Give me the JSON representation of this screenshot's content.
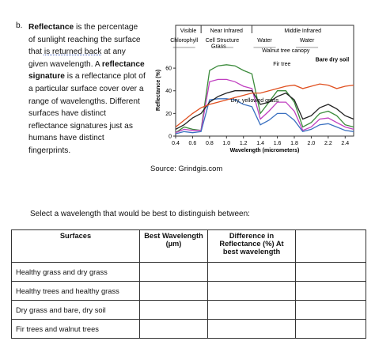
{
  "question": {
    "label": "b.",
    "runs": [
      {
        "text": "Reflectance",
        "bold": true
      },
      {
        "text": " is the percentage of sunlight reaching the surface that ",
        "bold": false
      },
      {
        "text": "is returned back",
        "bold": false,
        "underline": true
      },
      {
        "text": " at any given wavelength. A ",
        "bold": false
      },
      {
        "text": "reflectance signature",
        "bold": true
      },
      {
        "text": " is a reflectance plot of a particular surface cover over a range of wavelengths. Different surfaces have distinct reflectance signatures just as humans have distinct fingerprints.",
        "bold": false
      }
    ]
  },
  "chart_data": {
    "type": "line",
    "bands": [
      "Visible",
      "Near Infrared",
      "Middle Infrared"
    ],
    "sub_bands": [
      "Chlorophyll",
      "Cell Structure",
      "Water",
      "Water"
    ],
    "x_label": "Wavelength (micrometers)",
    "y_label": "Reflectance (%)",
    "x": [
      0.4,
      0.5,
      0.6,
      0.7,
      0.8,
      0.9,
      1.0,
      1.1,
      1.2,
      1.3,
      1.4,
      1.5,
      1.6,
      1.7,
      1.8,
      1.9,
      2.0,
      2.1,
      2.2,
      2.3,
      2.4,
      2.5
    ],
    "series": [
      {
        "name": "Grass",
        "color": "#3a8a3a",
        "values": [
          3,
          8,
          6,
          5,
          58,
          62,
          63,
          62,
          58,
          55,
          20,
          30,
          40,
          40,
          30,
          8,
          12,
          20,
          22,
          18,
          10,
          8
        ]
      },
      {
        "name": "Walnut tree canopy",
        "color": "#c040c0",
        "values": [
          3,
          6,
          5,
          5,
          48,
          50,
          50,
          48,
          44,
          42,
          15,
          22,
          30,
          30,
          22,
          5,
          8,
          15,
          16,
          12,
          8,
          6
        ]
      },
      {
        "name": "Fir tree",
        "color": "#3a70c0",
        "values": [
          2,
          4,
          3,
          4,
          32,
          33,
          33,
          32,
          28,
          26,
          10,
          14,
          20,
          20,
          14,
          4,
          6,
          10,
          11,
          8,
          5,
          4
        ]
      },
      {
        "name": "Dry, yellowed grass",
        "color": "#222222",
        "values": [
          6,
          10,
          16,
          20,
          30,
          35,
          38,
          40,
          40,
          40,
          28,
          30,
          35,
          38,
          32,
          15,
          18,
          25,
          28,
          24,
          18,
          15
        ]
      },
      {
        "name": "Bare dry soil",
        "color": "#e05020",
        "values": [
          8,
          14,
          20,
          25,
          28,
          30,
          32,
          34,
          36,
          38,
          38,
          40,
          42,
          44,
          45,
          42,
          44,
          46,
          45,
          42,
          44,
          45
        ]
      }
    ],
    "xlim": [
      0.4,
      2.5
    ],
    "ylim": [
      0,
      95
    ],
    "xticks": [
      0.4,
      0.6,
      0.8,
      {
        "value": 1,
        "label": "1.0"
      },
      1.2,
      1.4,
      1.6,
      1.8,
      {
        "value": 2,
        "label": "2.0"
      },
      2.2,
      2.4
    ],
    "yticks": [
      0,
      20,
      40,
      60
    ]
  },
  "source": "Source: Grindgis.com",
  "prompt": "Select a wavelength that would be best to distinguish between:",
  "table": {
    "header": [
      "Surfaces",
      "Best Wavelength (µm)",
      "Difference in Reflectance (%) At best wavelength"
    ],
    "rows": [
      "Healthy grass and dry grass",
      "Healthy trees and healthy grass",
      "Dry grass and bare, dry soil",
      "Fir trees and walnut trees"
    ]
  }
}
